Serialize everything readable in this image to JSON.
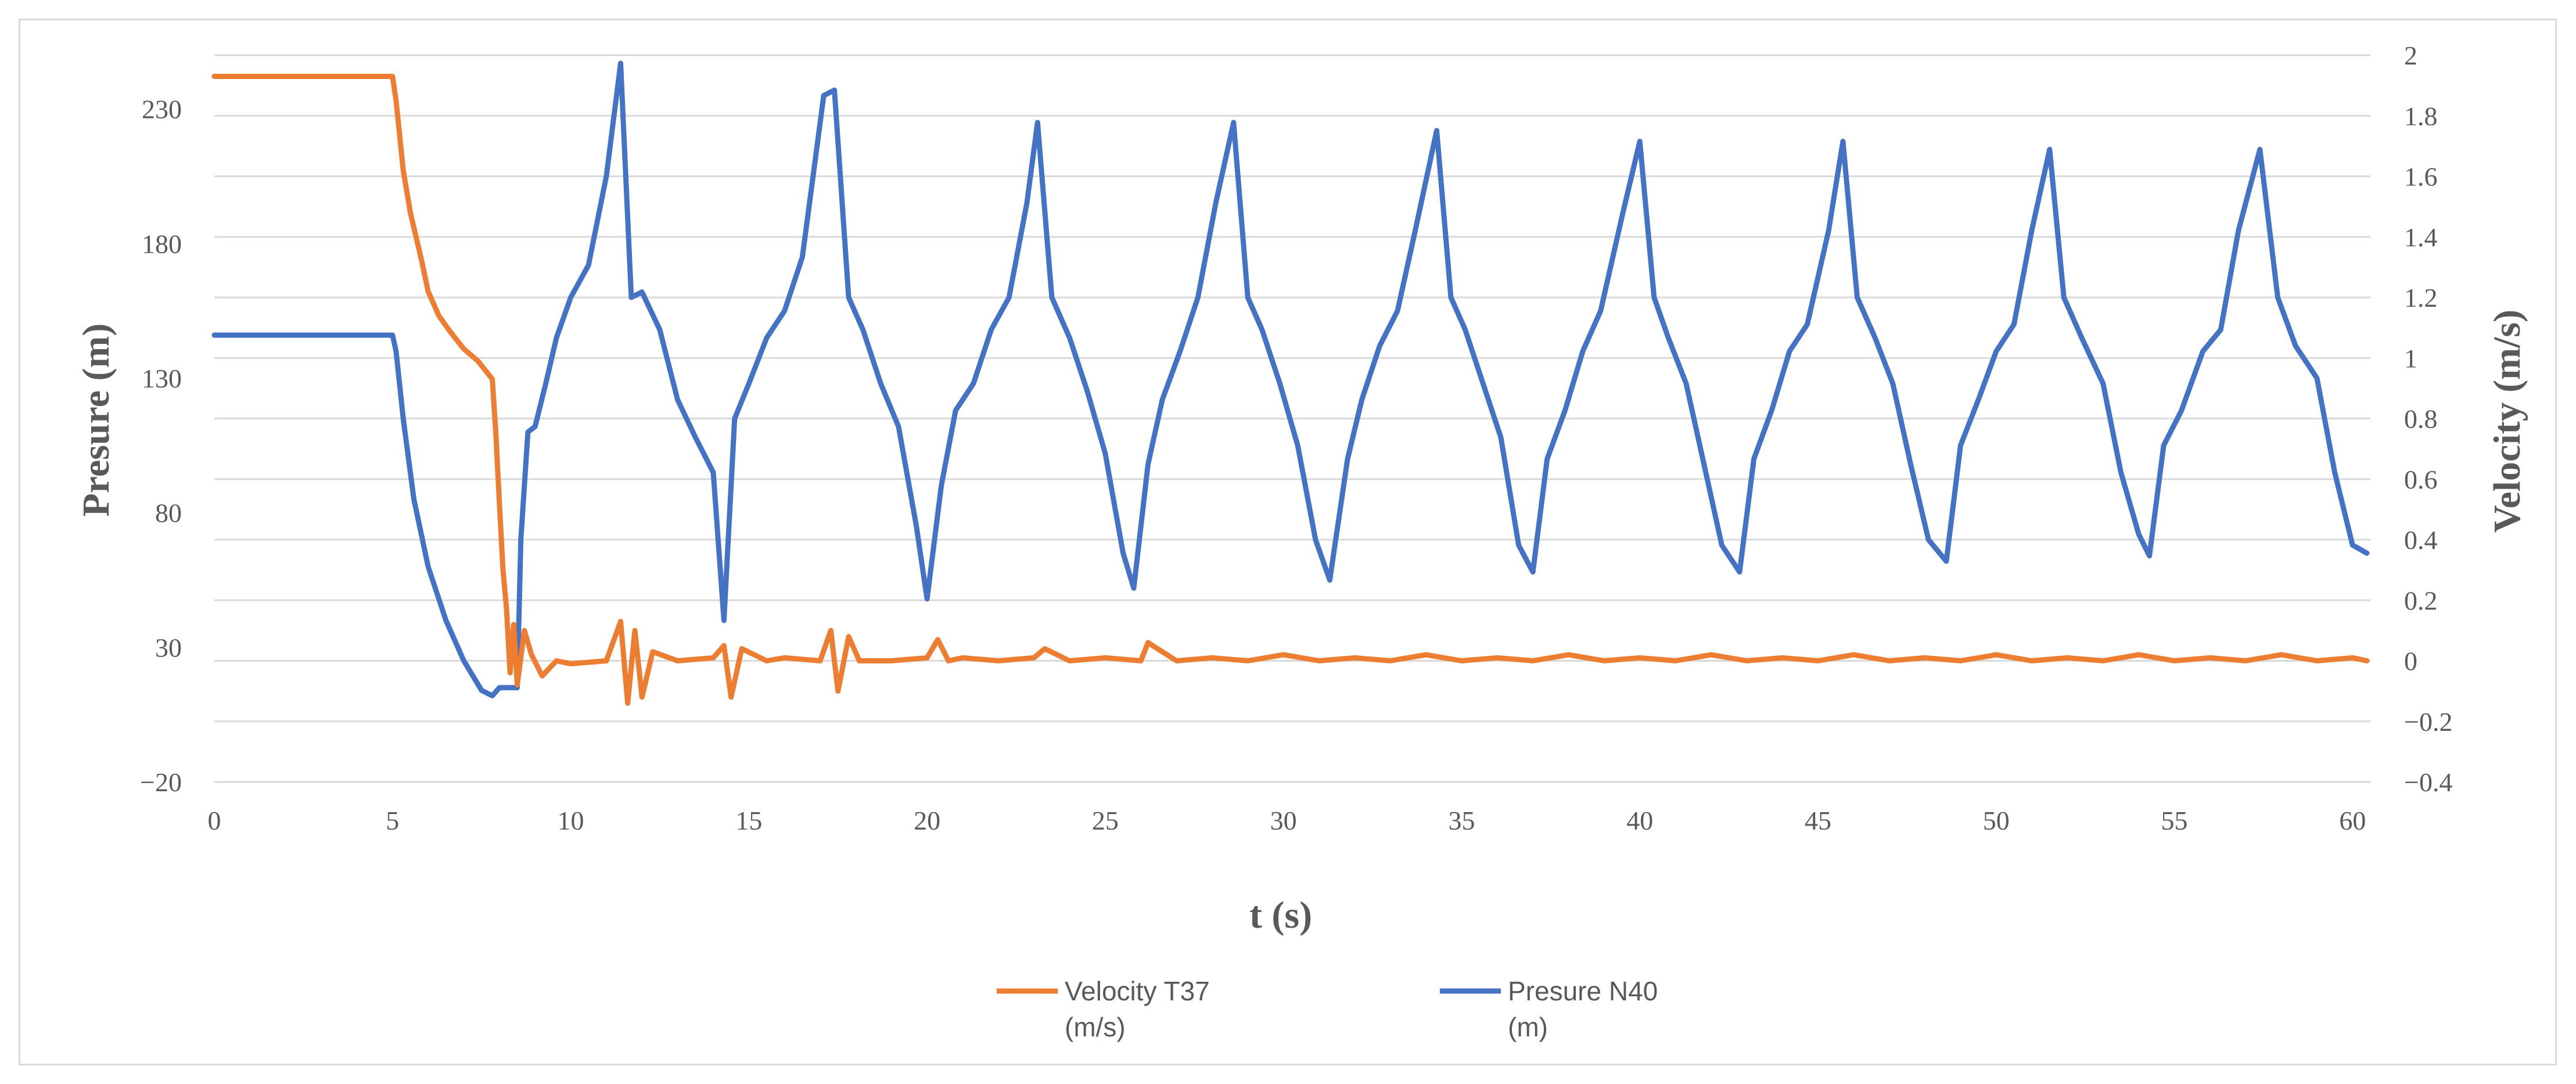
{
  "chart_data": {
    "type": "line",
    "xlabel": "t (s)",
    "ylabel": "Presure (m)",
    "y2label": "Velocity (m/s)",
    "xlim": [
      0,
      60.5
    ],
    "ylim": [
      -20,
      250
    ],
    "y2lim": [
      -0.4,
      2.0
    ],
    "x_ticks": [
      0,
      5,
      10,
      15,
      20,
      25,
      30,
      35,
      40,
      45,
      50,
      55,
      60
    ],
    "y_ticks": [
      -20,
      30,
      80,
      130,
      180,
      230
    ],
    "y2_ticks": [
      -0.4,
      -0.2,
      0,
      0.2,
      0.4,
      0.6,
      0.8,
      1,
      1.2,
      1.4,
      1.6,
      1.8,
      2
    ],
    "y2_tick_labels": [
      "−0.4",
      "−0.2",
      "0",
      "0.2",
      "0.4",
      "0.6",
      "0.8",
      "1",
      "1.2",
      "1.4",
      "1.6",
      "1.8",
      "2"
    ],
    "y_tick_labels": [
      "−20",
      "30",
      "80",
      "130",
      "180",
      "230"
    ],
    "grid": true,
    "legend_position": "bottom",
    "series": [
      {
        "name": "Velocity T37 (m/s)",
        "legend_lines": [
          "Velocity T37",
          "(m/s)"
        ],
        "axis": "right",
        "color": "#ED7D31",
        "x": [
          0,
          5,
          5.1,
          5.3,
          5.5,
          5.8,
          6.0,
          6.3,
          6.6,
          7.0,
          7.4,
          7.8,
          7.9,
          8.0,
          8.1,
          8.2,
          8.3,
          8.4,
          8.5,
          8.7,
          8.9,
          9.2,
          9.6,
          10,
          11,
          11.4,
          11.6,
          11.8,
          12.0,
          12.3,
          13,
          14,
          14.3,
          14.5,
          14.8,
          15.5,
          16,
          17,
          17.3,
          17.5,
          17.8,
          18.1,
          19,
          20,
          20.3,
          20.6,
          21,
          22,
          23,
          23.3,
          24,
          25,
          26,
          26.2,
          27,
          28,
          29,
          30,
          31,
          32,
          33,
          34,
          35,
          36,
          37,
          38,
          39,
          40,
          41,
          42,
          43,
          44,
          45,
          46,
          47,
          48,
          49,
          50,
          51,
          52,
          53,
          54,
          55,
          56,
          57,
          58,
          59,
          60,
          60.4
        ],
        "values": [
          1.93,
          1.93,
          1.85,
          1.62,
          1.48,
          1.33,
          1.22,
          1.14,
          1.09,
          1.03,
          0.99,
          0.93,
          0.75,
          0.52,
          0.3,
          0.17,
          -0.04,
          0.12,
          -0.08,
          0.1,
          0.02,
          -0.05,
          0.0,
          -0.01,
          0.0,
          0.13,
          -0.14,
          0.1,
          -0.12,
          0.03,
          0.0,
          0.01,
          0.05,
          -0.12,
          0.04,
          0.0,
          0.01,
          0.0,
          0.1,
          -0.1,
          0.08,
          0.0,
          0.0,
          0.01,
          0.07,
          0.0,
          0.01,
          0.0,
          0.01,
          0.04,
          0.0,
          0.01,
          0.0,
          0.06,
          0.0,
          0.01,
          0.0,
          0.02,
          0.0,
          0.01,
          0.0,
          0.02,
          0.0,
          0.01,
          0.0,
          0.02,
          0.0,
          0.01,
          0.0,
          0.02,
          0.0,
          0.01,
          0.0,
          0.02,
          0.0,
          0.01,
          0.0,
          0.02,
          0.0,
          0.01,
          0.0,
          0.02,
          0.0,
          0.01,
          0.0,
          0.02,
          0.0,
          0.01,
          0.0
        ]
      },
      {
        "name": "Presure N40 (m)",
        "legend_lines": [
          "Presure N40",
          "(m)"
        ],
        "axis": "left",
        "color": "#4472C4",
        "x": [
          0,
          5,
          5.1,
          5.3,
          5.6,
          6.0,
          6.5,
          7.0,
          7.5,
          7.8,
          8.0,
          8.5,
          8.6,
          8.8,
          9.0,
          9.3,
          9.6,
          10.0,
          10.5,
          11.0,
          11.4,
          11.7,
          12.0,
          12.5,
          13.0,
          13.5,
          14.0,
          14.3,
          14.6,
          15.0,
          15.5,
          16.0,
          16.5,
          17.1,
          17.4,
          17.8,
          18.2,
          18.7,
          19.2,
          19.7,
          20.0,
          20.4,
          20.8,
          21.3,
          21.8,
          22.3,
          22.8,
          23.1,
          23.5,
          24.0,
          24.5,
          25.0,
          25.5,
          25.8,
          26.2,
          26.6,
          27.1,
          27.6,
          28.1,
          28.6,
          29.0,
          29.4,
          29.9,
          30.4,
          30.9,
          31.3,
          31.8,
          32.2,
          32.7,
          33.2,
          33.7,
          34.3,
          34.7,
          35.1,
          35.6,
          36.1,
          36.6,
          37.0,
          37.4,
          37.9,
          38.4,
          38.9,
          39.5,
          40.0,
          40.4,
          40.8,
          41.3,
          41.8,
          42.3,
          42.8,
          43.2,
          43.7,
          44.2,
          44.7,
          45.3,
          45.7,
          46.1,
          46.6,
          47.1,
          47.6,
          48.1,
          48.6,
          49.0,
          49.5,
          50.0,
          50.5,
          51.0,
          51.5,
          51.9,
          52.4,
          53.0,
          53.5,
          54.0,
          54.3,
          54.7,
          55.2,
          55.8,
          56.3,
          56.8,
          57.4,
          57.9,
          58.4,
          59.0,
          59.5,
          60.0,
          60.4
        ],
        "values": [
          146,
          146,
          140,
          115,
          85,
          60,
          40,
          25,
          14,
          12,
          15,
          15,
          70,
          110,
          112,
          128,
          145,
          160,
          172,
          205,
          247,
          160,
          162,
          148,
          122,
          108,
          95,
          40,
          115,
          128,
          145,
          155,
          175,
          235,
          237,
          160,
          148,
          128,
          112,
          75,
          48,
          90,
          118,
          128,
          148,
          160,
          195,
          225,
          160,
          145,
          125,
          102,
          65,
          52,
          98,
          122,
          140,
          160,
          195,
          225,
          160,
          148,
          128,
          105,
          70,
          55,
          100,
          122,
          142,
          155,
          185,
          222,
          160,
          148,
          128,
          108,
          68,
          58,
          100,
          118,
          140,
          155,
          190,
          218,
          160,
          145,
          128,
          98,
          68,
          58,
          100,
          118,
          140,
          150,
          185,
          218,
          160,
          145,
          128,
          98,
          70,
          62,
          105,
          122,
          140,
          150,
          185,
          215,
          160,
          145,
          128,
          95,
          72,
          64,
          105,
          118,
          140,
          148,
          185,
          215,
          160,
          142,
          130,
          95,
          68,
          65
        ]
      }
    ]
  }
}
